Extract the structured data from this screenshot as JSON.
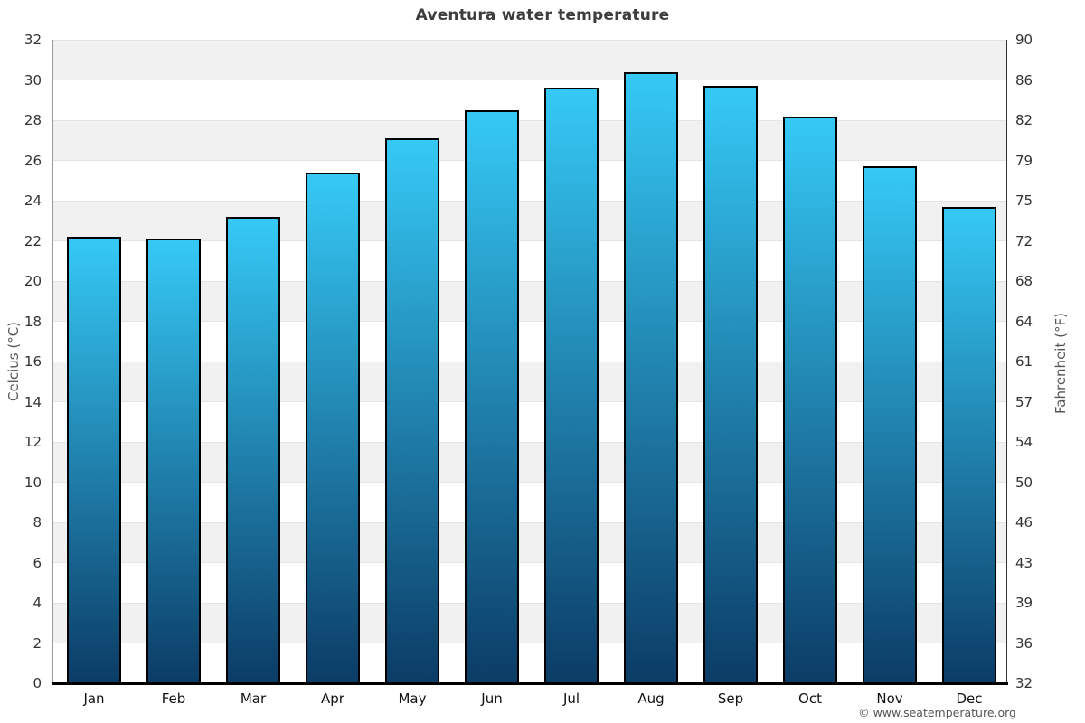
{
  "chart_data": {
    "type": "bar",
    "title": "Aventura water temperature",
    "categories": [
      "Jan",
      "Feb",
      "Mar",
      "Apr",
      "May",
      "Jun",
      "Jul",
      "Aug",
      "Sep",
      "Oct",
      "Nov",
      "Dec"
    ],
    "values": [
      22.2,
      22.1,
      23.2,
      25.4,
      27.1,
      28.5,
      29.6,
      30.4,
      29.7,
      28.2,
      25.7,
      23.7
    ],
    "ylabel": "Celcius (°C)",
    "ylabel_right": "Fahrenheit (°F)",
    "ylim": [
      0,
      32
    ],
    "yticks_celsius": [
      0,
      2,
      4,
      6,
      8,
      10,
      12,
      14,
      16,
      18,
      20,
      22,
      24,
      26,
      28,
      30,
      32
    ],
    "yticks_fahrenheit": [
      "32",
      "36",
      "39",
      "43",
      "46",
      "50",
      "54",
      "57",
      "61",
      "64",
      "68",
      "72",
      "75",
      "79",
      "82",
      "86",
      "90"
    ],
    "grid": true,
    "legend": false,
    "band_alternate": true,
    "colors": {
      "bar_gradient_top": "#36c9f6",
      "bar_gradient_bottom": "#0b3c66",
      "band": "#f1f1f1",
      "gridline": "#e4e4e4",
      "title": "#3d3d3d"
    },
    "watermark": "© www.seatemperature.org"
  }
}
